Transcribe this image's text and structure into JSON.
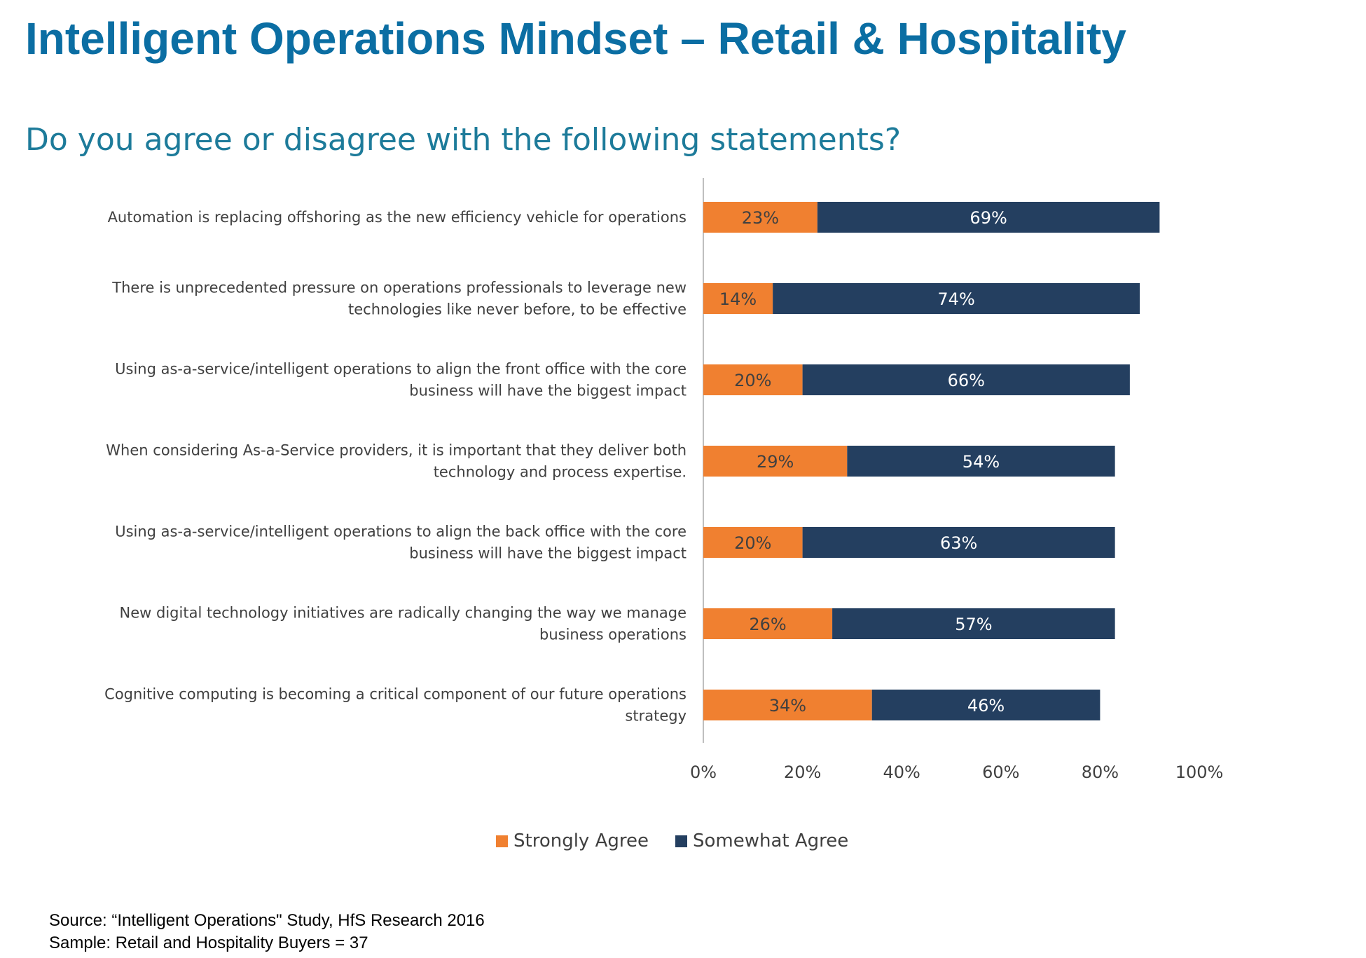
{
  "title": "Intelligent Operations Mindset – Retail & Hospitality",
  "subtitle": "Do you agree or disagree with the following statements?",
  "colors": {
    "strongly_agree": "#f08030",
    "somewhat_agree": "#243f60",
    "title": "#0b6ea3",
    "subtitle": "#1d7b9a"
  },
  "chart_data": {
    "type": "bar",
    "orientation": "horizontal",
    "stacked": true,
    "categories": [
      "Automation is replacing offshoring as the new efficiency vehicle for operations",
      "There is unprecedented pressure on operations professionals to leverage new technologies like never before, to be effective",
      "Using as-a-service/intelligent operations to align the front office with the core business will have the biggest impact",
      "When considering As-a-Service providers, it is important that they deliver both technology and process expertise.",
      "Using as-a-service/intelligent operations to align the back office with the core business will have the biggest impact",
      "New digital technology initiatives are radically changing the way we manage business operations",
      "Cognitive computing is becoming a critical component of our future operations strategy"
    ],
    "category_lines": [
      [
        "Automation is replacing offshoring as the new efficiency vehicle for operations"
      ],
      [
        "There is unprecedented pressure on operations professionals to leverage new",
        "technologies like never before, to be effective"
      ],
      [
        "Using as-a-service/intelligent operations to align the front office with the core",
        "business will have the biggest impact"
      ],
      [
        "When considering As-a-Service providers, it is important that they deliver both",
        "technology and process expertise."
      ],
      [
        "Using as-a-service/intelligent operations to align the back office with the core",
        "business will have the biggest impact"
      ],
      [
        "New digital technology initiatives are radically changing the way we manage",
        "business operations"
      ],
      [
        "Cognitive computing is becoming a critical component of our future operations",
        "strategy"
      ]
    ],
    "series": [
      {
        "name": "Strongly Agree",
        "values": [
          23,
          14,
          20,
          29,
          20,
          26,
          34
        ]
      },
      {
        "name": "Somewhat Agree",
        "values": [
          69,
          74,
          66,
          54,
          63,
          57,
          46
        ]
      }
    ],
    "xlim": [
      0,
      100
    ],
    "xticks": [
      0,
      20,
      40,
      60,
      80,
      100
    ],
    "tick_labels": [
      "0%",
      "20%",
      "40%",
      "60%",
      "80%",
      "100%"
    ],
    "value_suffix": "%",
    "legend_position": "bottom",
    "grid": false
  },
  "source": {
    "line1": "Source: “Intelligent Operations\" Study, HfS Research 2016",
    "line2": "Sample: Retail and Hospitality Buyers = 37"
  }
}
